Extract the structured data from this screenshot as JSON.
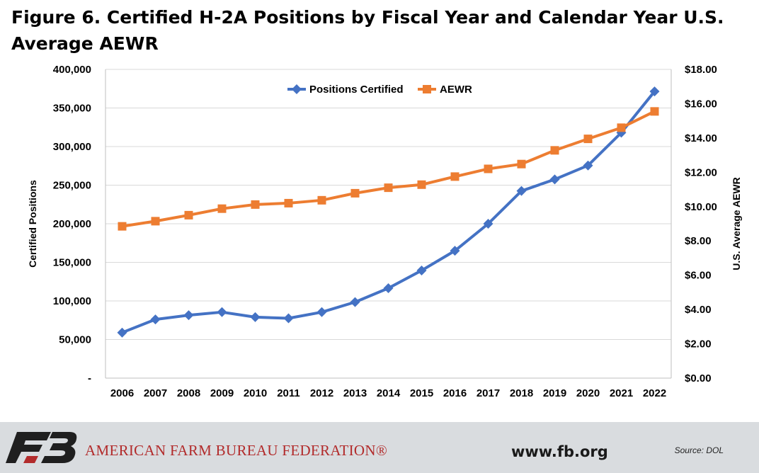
{
  "chart_data": {
    "type": "line",
    "title": "Figure 6. Certified H-2A Positions by Fiscal Year and Calendar Year U.S. Average AEWR",
    "x": [
      "2006",
      "2007",
      "2008",
      "2009",
      "2010",
      "2011",
      "2012",
      "2013",
      "2014",
      "2015",
      "2016",
      "2017",
      "2018",
      "2019",
      "2020",
      "2021",
      "2022"
    ],
    "series": [
      {
        "name": "Positions Certified",
        "axis": "left",
        "color": "#4472c4",
        "marker": "diamond",
        "values": [
          59000,
          76000,
          81500,
          85500,
          79000,
          77500,
          85500,
          98500,
          116500,
          139500,
          165000,
          200000,
          242500,
          257500,
          275500,
          318000,
          371500
        ]
      },
      {
        "name": "AEWR",
        "axis": "right",
        "color": "#ed7d31",
        "marker": "square",
        "values": [
          8.85,
          9.15,
          9.5,
          9.88,
          10.12,
          10.2,
          10.37,
          10.78,
          11.1,
          11.28,
          11.75,
          12.2,
          12.48,
          13.28,
          13.95,
          14.6,
          15.55
        ]
      }
    ],
    "y_left": {
      "label": "Certified Positions",
      "ylim": [
        0,
        400000
      ],
      "ticks": [
        {
          "v": 0,
          "label": "-"
        },
        {
          "v": 50000,
          "label": "50,000"
        },
        {
          "v": 100000,
          "label": "100,000"
        },
        {
          "v": 150000,
          "label": "150,000"
        },
        {
          "v": 200000,
          "label": "200,000"
        },
        {
          "v": 250000,
          "label": "250,000"
        },
        {
          "v": 300000,
          "label": "300,000"
        },
        {
          "v": 350000,
          "label": "350,000"
        },
        {
          "v": 400000,
          "label": "400,000"
        }
      ]
    },
    "y_right": {
      "label": "U.S. Average AEWR",
      "ylim": [
        0,
        18
      ],
      "ticks": [
        {
          "v": 0,
          "label": "$0.00"
        },
        {
          "v": 2,
          "label": "$2.00"
        },
        {
          "v": 4,
          "label": "$4.00"
        },
        {
          "v": 6,
          "label": "$6.00"
        },
        {
          "v": 8,
          "label": "$8.00"
        },
        {
          "v": 10,
          "label": "$10.00"
        },
        {
          "v": 12,
          "label": "$12.00"
        },
        {
          "v": 14,
          "label": "$14.00"
        },
        {
          "v": 16,
          "label": "$16.00"
        },
        {
          "v": 18,
          "label": "$18.00"
        }
      ]
    },
    "grid": true,
    "legend_position": "top-center"
  },
  "footer": {
    "logo_text": "FB",
    "organization": "AMERICAN FARM BUREAU FEDERATION®",
    "website": "www.fb.org",
    "source": "Source: DOL"
  }
}
